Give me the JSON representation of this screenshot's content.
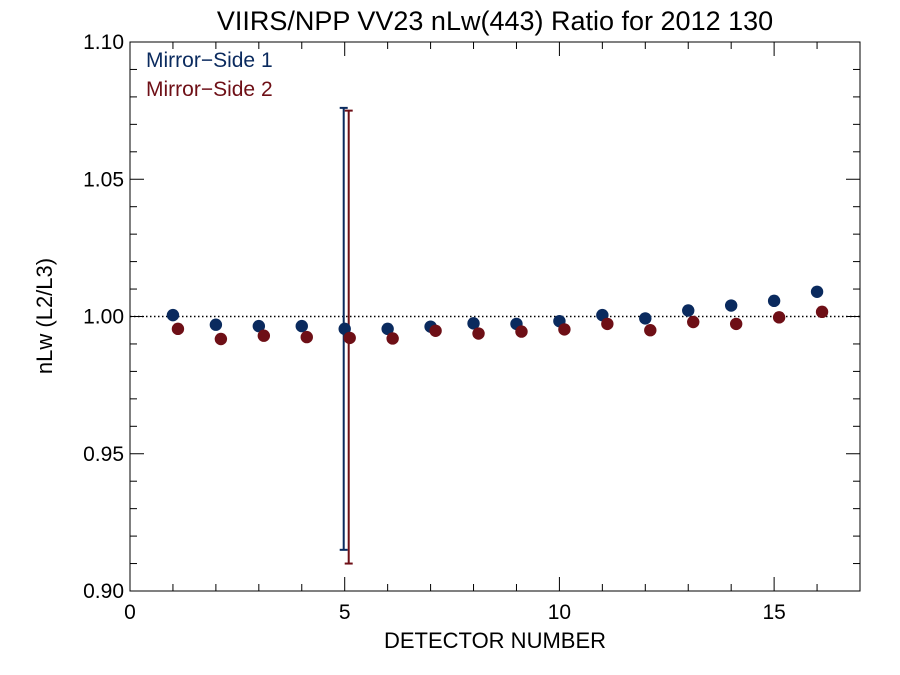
{
  "chart_data": {
    "type": "scatter",
    "title": "VIIRS/NPP VV23 nLw(443) Ratio for 2012 130",
    "xlabel": "DETECTOR NUMBER",
    "ylabel": "nLw (L2/L3)",
    "xlim": [
      0,
      17
    ],
    "ylim": [
      0.9,
      1.1
    ],
    "xticks": [
      0,
      5,
      10,
      15
    ],
    "xtick_labels": [
      "0",
      "5",
      "10",
      "15"
    ],
    "yticks": [
      0.9,
      0.95,
      1.0,
      1.05,
      1.1
    ],
    "ytick_labels": [
      "0.90",
      "0.95",
      "1.00",
      "1.05",
      "1.10"
    ],
    "reference_line": 1.0,
    "grid": false,
    "legend_position": "top-left",
    "series": [
      {
        "name": "Mirror−Side 1",
        "color": "#0a2a5e",
        "x": [
          1,
          2,
          3,
          4,
          5,
          6,
          7,
          8,
          9,
          10,
          11,
          12,
          13,
          14,
          15,
          16
        ],
        "y": [
          1.0005,
          0.997,
          0.9965,
          0.9965,
          0.9955,
          0.9955,
          0.9963,
          0.9975,
          0.9973,
          0.9983,
          1.0005,
          0.9993,
          1.0022,
          1.004,
          1.0057,
          1.009
        ],
        "errorbars": [
          {
            "x": 5,
            "low": 0.915,
            "high": 1.076
          }
        ]
      },
      {
        "name": "Mirror−Side 2",
        "color": "#6e0f16",
        "x": [
          1,
          2,
          3,
          4,
          5,
          6,
          7,
          8,
          9,
          10,
          11,
          12,
          13,
          14,
          15,
          16
        ],
        "y": [
          0.9955,
          0.9918,
          0.993,
          0.9925,
          0.9922,
          0.992,
          0.9948,
          0.9938,
          0.9945,
          0.9953,
          0.9973,
          0.995,
          0.998,
          0.9973,
          0.9997,
          1.0017
        ],
        "errorbars": [
          {
            "x": 5,
            "low": 0.91,
            "high": 1.075
          }
        ]
      }
    ]
  }
}
